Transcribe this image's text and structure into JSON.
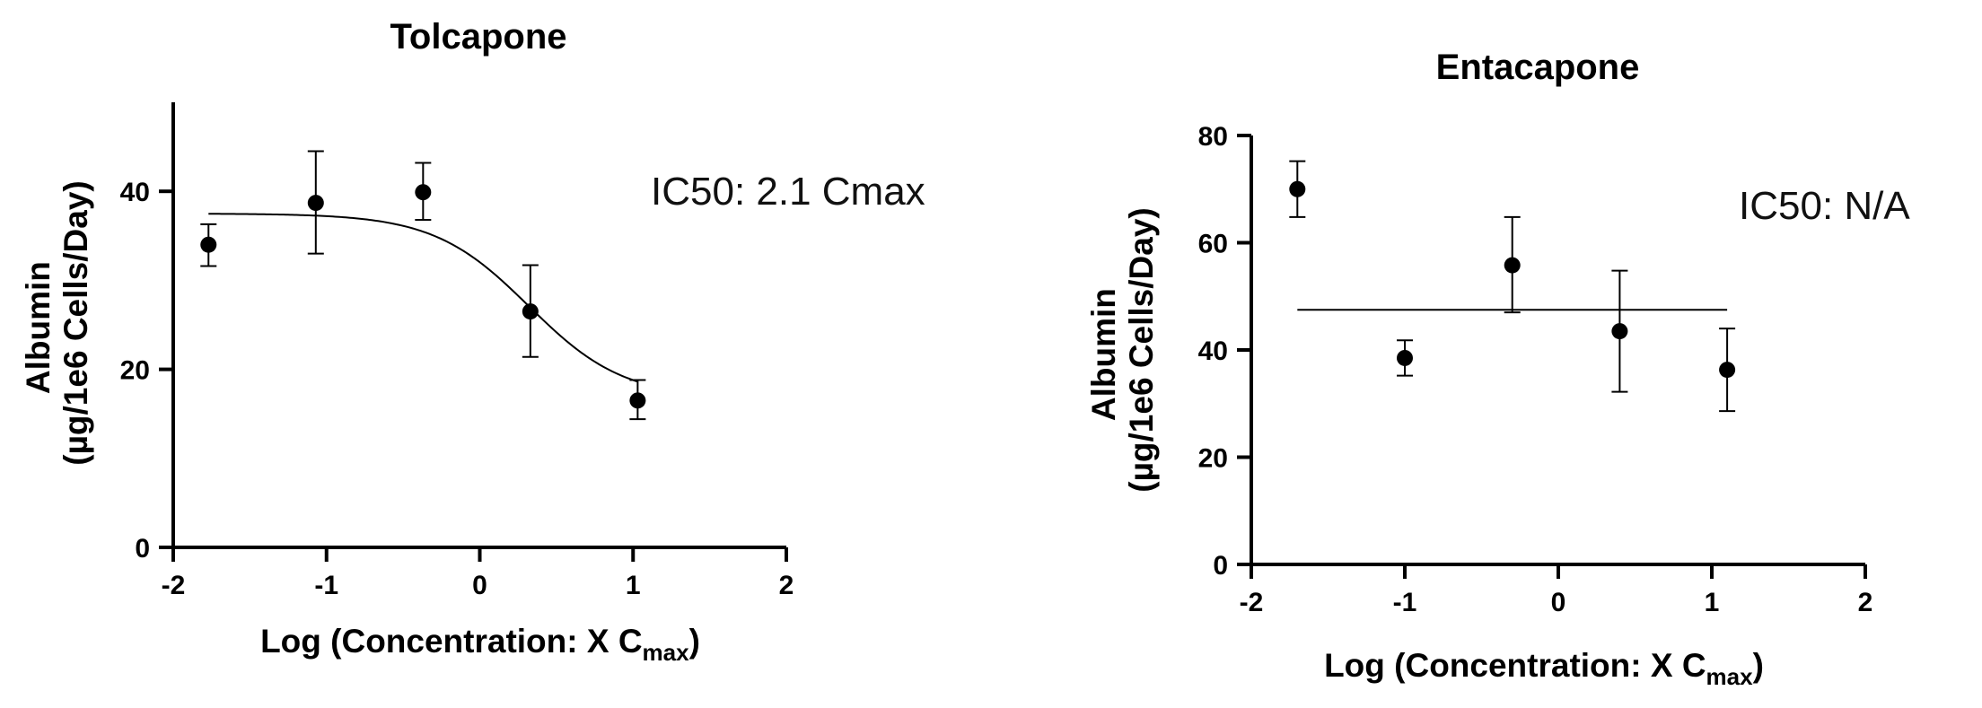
{
  "chart_data": [
    {
      "type": "scatter",
      "title": "Tolcapone",
      "ylabel_line1": "Albumin",
      "ylabel_line2": "(µg/1e6 Cells/Day)",
      "xlabel_main": "Log (Concentration: X C",
      "xlabel_sub": "max",
      "xlabel_close": ")",
      "annotation": "IC50: 2.1 Cmax",
      "xlim": [
        -2,
        2
      ],
      "ylim": [
        0,
        50
      ],
      "xticks": [
        -2,
        -1,
        0,
        1,
        2
      ],
      "yticks": [
        0,
        20,
        40
      ],
      "x": [
        -1.77,
        -1.07,
        -0.37,
        0.33,
        1.03
      ],
      "y": [
        34.0,
        38.7,
        39.9,
        26.5,
        16.5
      ],
      "err_upper": [
        36.3,
        44.5,
        43.2,
        31.7,
        18.8
      ],
      "err_lower": [
        31.6,
        33.0,
        36.8,
        21.4,
        14.4
      ],
      "fit": {
        "model": "sigmoidal",
        "top": 37.5,
        "bottom": 16.7,
        "logIC50": 0.32,
        "hill_slope": -1.4,
        "x_range": [
          -1.77,
          1.03
        ]
      }
    },
    {
      "type": "scatter",
      "title": "Entacapone",
      "ylabel_line1": "Albumin",
      "ylabel_line2": "(µg/1e6 Cells/Day)",
      "xlabel_main": "Log (Concentration: X C",
      "xlabel_sub": "max",
      "xlabel_close": ")",
      "annotation": "IC50: N/A",
      "xlim": [
        -2,
        2
      ],
      "ylim": [
        0,
        80
      ],
      "xticks": [
        -2,
        -1,
        0,
        1,
        2
      ],
      "yticks": [
        0,
        20,
        40,
        60,
        80
      ],
      "x": [
        -1.7,
        -1.0,
        -0.3,
        0.4,
        1.1
      ],
      "y": [
        70.0,
        38.5,
        55.8,
        43.5,
        36.3
      ],
      "err_upper": [
        75.2,
        41.8,
        64.8,
        54.8,
        44.0
      ],
      "err_lower": [
        64.8,
        35.2,
        47.0,
        32.2,
        28.6
      ],
      "fit": {
        "model": "constant",
        "value": 47.5,
        "x_range": [
          -1.7,
          1.1
        ]
      }
    }
  ]
}
